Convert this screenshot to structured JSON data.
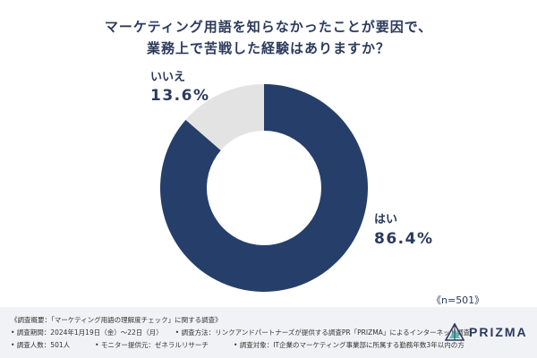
{
  "title_line1": "マーケティング用語を知らなかったことが要因で、",
  "title_line2": "業務上で苦戦した経験はありますか？",
  "chart_data": {
    "type": "pie",
    "donut": true,
    "slices": [
      {
        "label": "はい",
        "value": 86.4,
        "value_label": "86.4%",
        "color": "#263f6a"
      },
      {
        "label": "いいえ",
        "value": 13.6,
        "value_label": "13.6%",
        "color": "#e3e3e3"
      }
    ]
  },
  "sample_note": "《n=501》",
  "footer": {
    "line1": "《調査概要：「マーケティング用語の理解度チェック」に関する調査》",
    "line2a": "• 調査期間：2024年1月19日（金）〜22日（月）",
    "line2b": "• 調査方法：リンクアンドパートナーズが提供する調査PR「PRIZMA」によるインターネット調査",
    "line3a": "• 調査人数：501人",
    "line3b": "• モニター提供元：ゼネラルリサーチ",
    "line3c": "• 調査対象：IT企業のマーケティング事業部に所属する勤務年数3年以内の方"
  },
  "logo": {
    "text": "PRIZMA",
    "icon": "prizma-logo-icon"
  }
}
